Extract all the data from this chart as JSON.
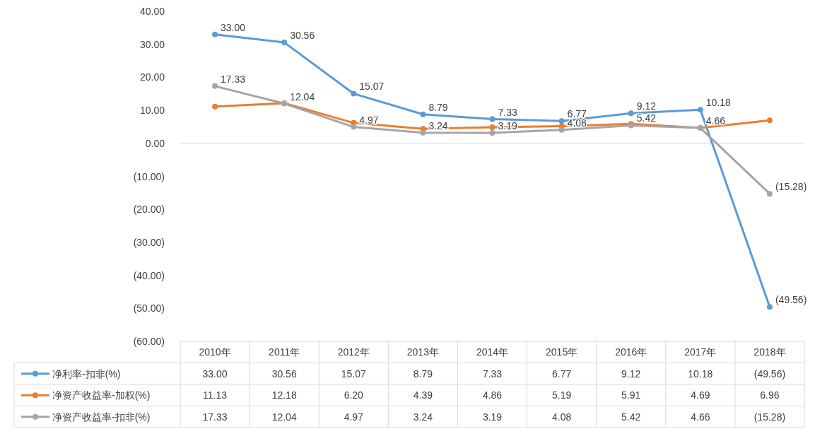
{
  "chart_data": {
    "type": "line",
    "categories": [
      "2010年",
      "2011年",
      "2012年",
      "2013年",
      "2014年",
      "2015年",
      "2016年",
      "2017年",
      "2018年"
    ],
    "series": [
      {
        "name": "净利率-扣非(%)",
        "color": "#5b9bd5",
        "values": [
          33.0,
          30.56,
          15.07,
          8.79,
          7.33,
          6.77,
          9.12,
          10.18,
          -49.56
        ],
        "value_labels": [
          "33.00",
          "30.56",
          "15.07",
          "8.79",
          "7.33",
          "6.77",
          "9.12",
          "10.18",
          "(49.56)"
        ]
      },
      {
        "name": "净资产收益率-加权(%)",
        "color": "#ed7d31",
        "values": [
          11.13,
          12.18,
          6.2,
          4.39,
          4.86,
          5.19,
          5.91,
          4.69,
          6.96
        ],
        "value_labels": [
          "11.13",
          "12.18",
          "6.20",
          "4.39",
          "4.86",
          "5.19",
          "5.91",
          "4.69",
          "6.96"
        ]
      },
      {
        "name": "净资产收益率-扣非(%)",
        "color": "#a5a5a5",
        "values": [
          17.33,
          12.04,
          4.97,
          3.24,
          3.19,
          4.08,
          5.42,
          4.66,
          -15.28
        ],
        "value_labels": [
          "17.33",
          "12.04",
          "4.97",
          "3.24",
          "3.19",
          "4.08",
          "5.42",
          "4.66",
          "(15.28)"
        ]
      }
    ],
    "ylim": [
      -60,
      40
    ],
    "yticks": [
      {
        "value": 40,
        "label": "40.00"
      },
      {
        "value": 30,
        "label": "30.00"
      },
      {
        "value": 20,
        "label": "20.00"
      },
      {
        "value": 10,
        "label": "10.00"
      },
      {
        "value": 0,
        "label": "0.00"
      },
      {
        "value": -10,
        "label": "(10.00)"
      },
      {
        "value": -20,
        "label": "(20.00)"
      },
      {
        "value": -30,
        "label": "(30.00)"
      },
      {
        "value": -40,
        "label": "(40.00)"
      },
      {
        "value": -50,
        "label": "(50.00)"
      },
      {
        "value": -60,
        "label": "(60.00)"
      }
    ],
    "legend": "bottom",
    "marker": "circle",
    "line_style": "solid",
    "annotations": [
      {
        "text": "33.00",
        "x": "2010年",
        "y": 33.0
      },
      {
        "text": "30.56",
        "x": "2011年",
        "y": 30.56
      },
      {
        "text": "15.07",
        "x": "2012年",
        "y": 15.07
      },
      {
        "text": "8.79",
        "x": "2013年",
        "y": 8.79
      },
      {
        "text": "7.33",
        "x": "2014年",
        "y": 7.33
      },
      {
        "text": "6.77",
        "x": "2015年",
        "y": 6.77
      },
      {
        "text": "9.12",
        "x": "2016年",
        "y": 9.12
      },
      {
        "text": "10.18",
        "x": "2017年",
        "y": 10.18
      },
      {
        "text": "(49.56)",
        "x": "2018年",
        "y": -49.56
      },
      {
        "text": "17.33",
        "x": "2010年",
        "y": 17.33
      },
      {
        "text": "12.04",
        "x": "2011年",
        "y": 12.04
      },
      {
        "text": "4.97",
        "x": "2012年",
        "y": 4.97
      },
      {
        "text": "3.24",
        "x": "2013年",
        "y": 3.24
      },
      {
        "text": "3.19",
        "x": "2014年",
        "y": 3.19
      },
      {
        "text": "4.08",
        "x": "2015年",
        "y": 4.08
      },
      {
        "text": "5.42",
        "x": "2016年",
        "y": 5.42
      },
      {
        "text": "4.66",
        "x": "2017年",
        "y": 4.66
      },
      {
        "text": "(15.28)",
        "x": "2018年",
        "y": -15.28
      }
    ]
  }
}
